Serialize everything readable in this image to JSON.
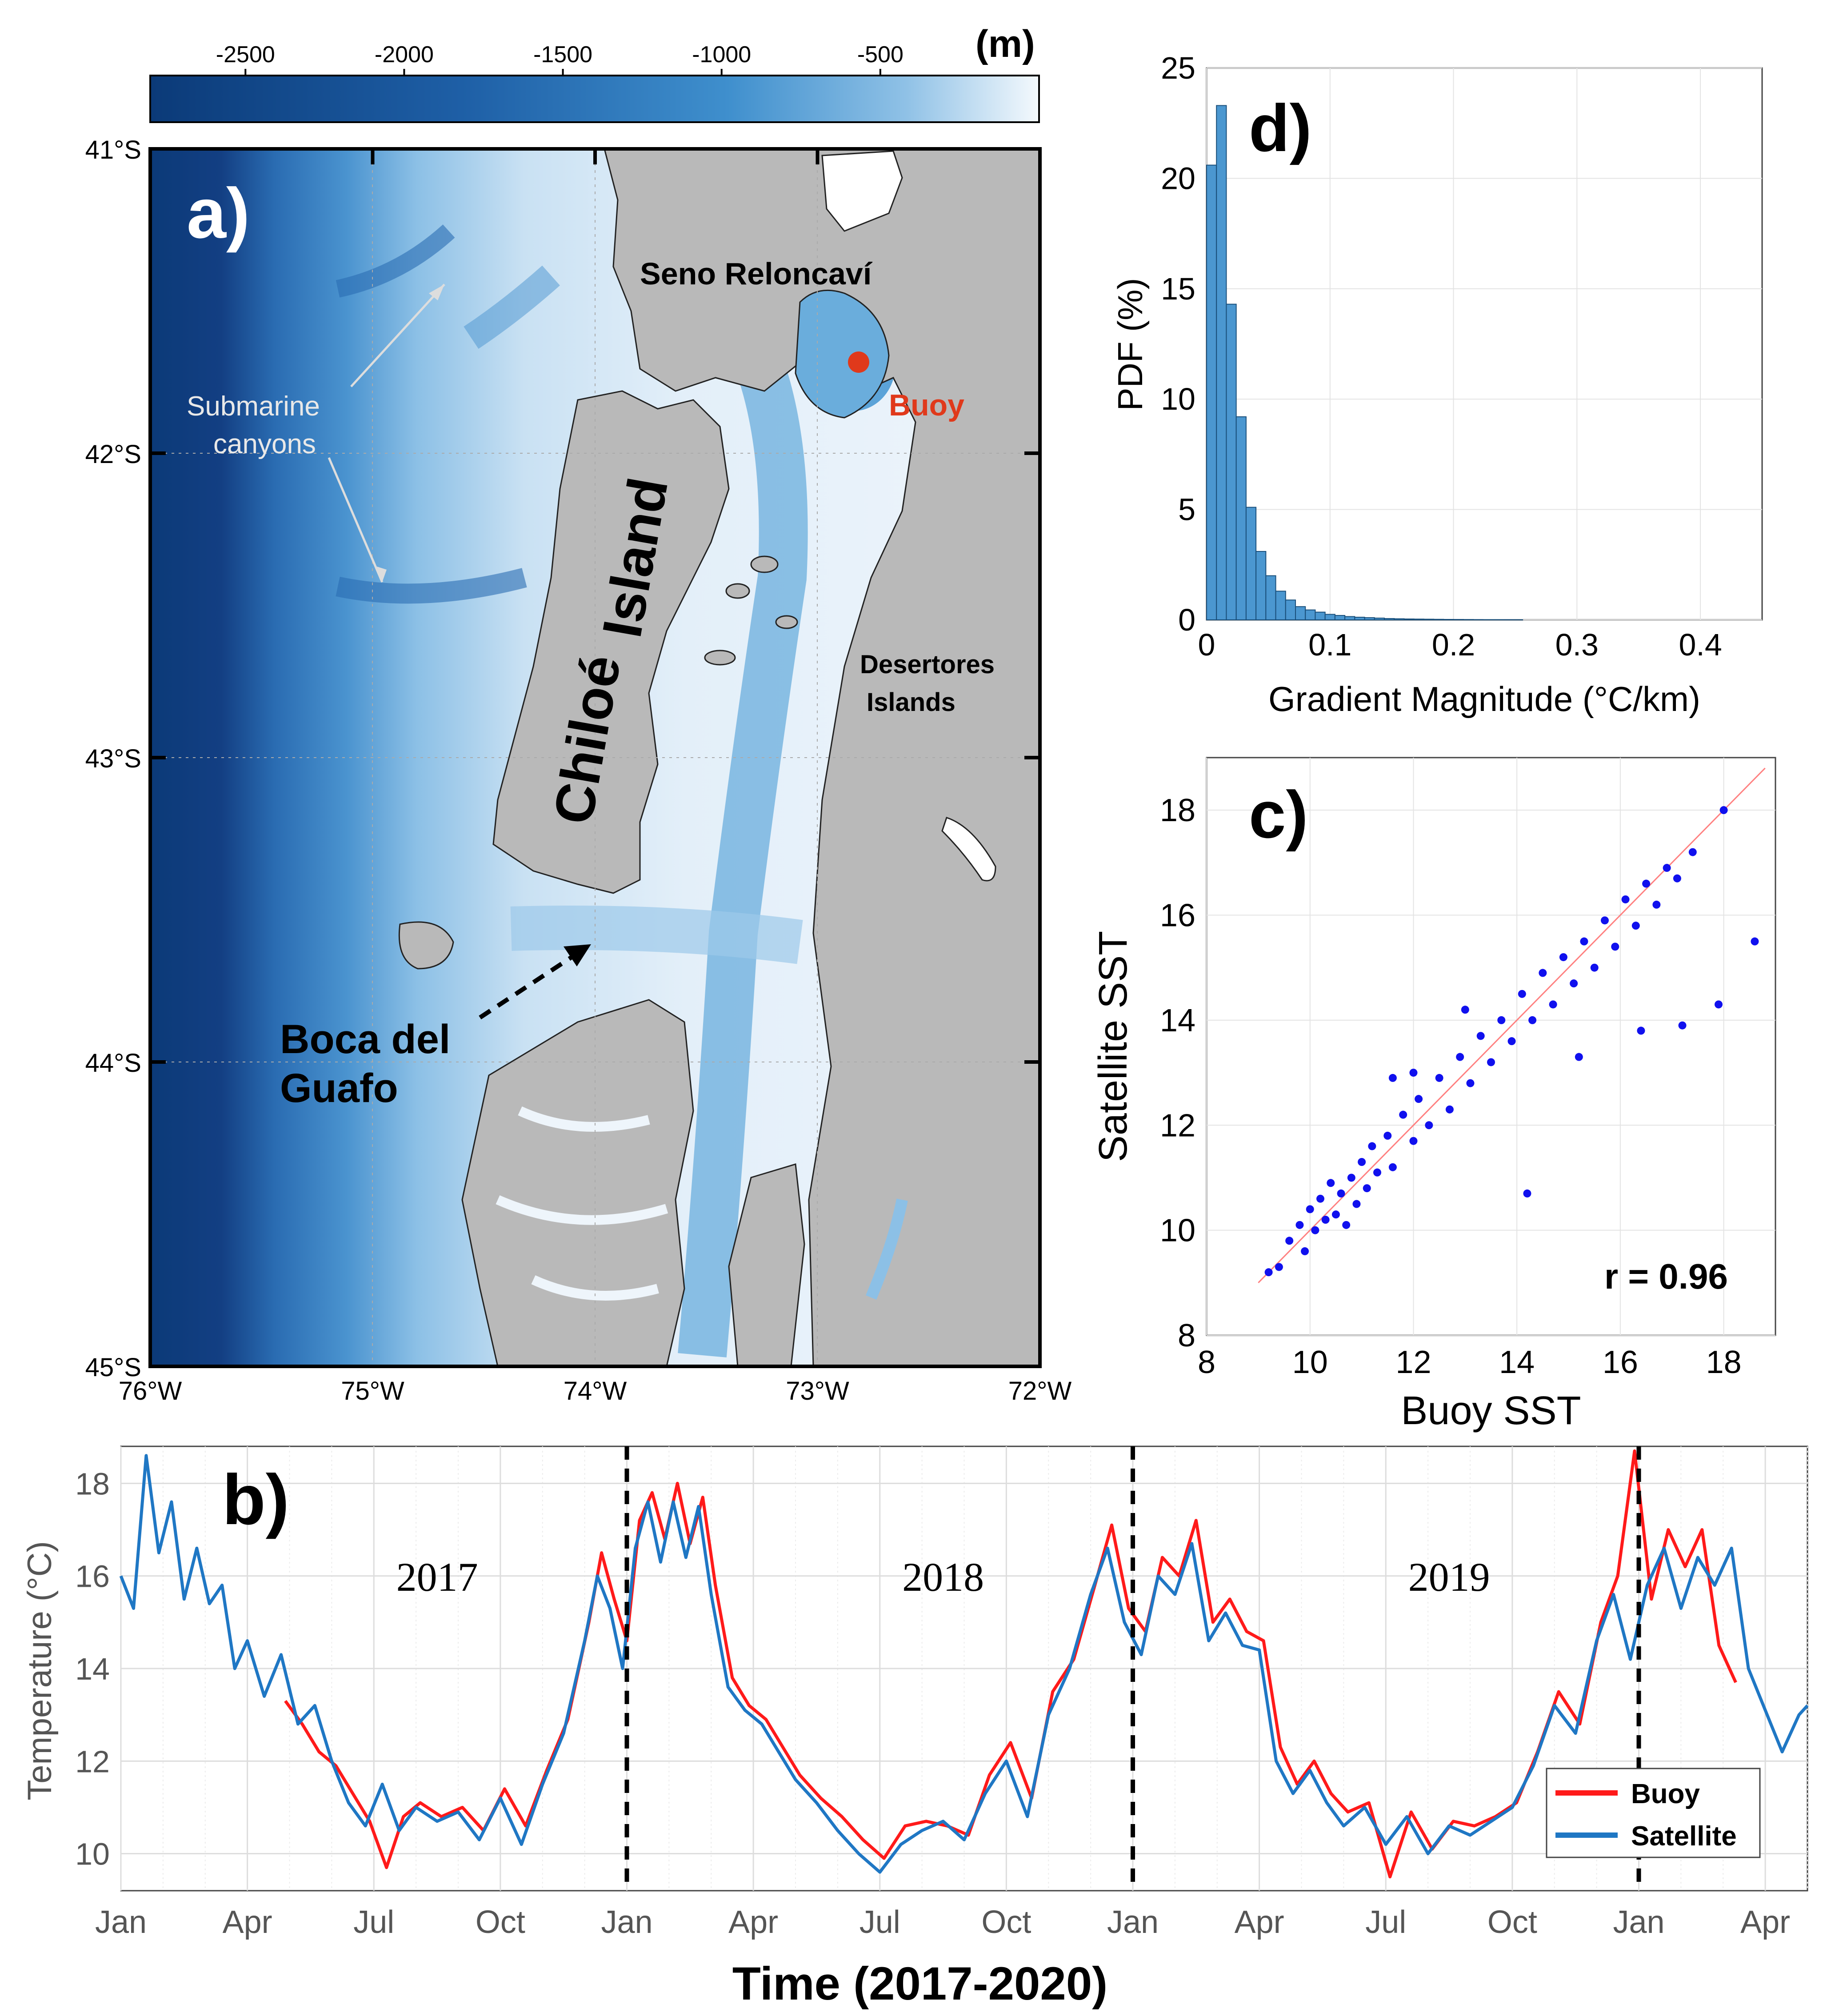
{
  "colors": {
    "deep": "#0b3a78",
    "mid": "#3f8fcd",
    "shallow": "#eaf3fb",
    "land": "#b9b9b9",
    "buoy_marker": "#e0391b",
    "buoy_line": "#ff1a1a",
    "satellite_line": "#1f77c4",
    "hist_bar": "#4b97d0",
    "scatter": "#1010ee",
    "fit_line": "#ff8080"
  },
  "panel_a": {
    "label": "a)",
    "colorbar": {
      "unit": "(m)",
      "ticks": [
        "-2500",
        "-2000",
        "-1500",
        "-1000",
        "-500"
      ],
      "tick_values": [
        -2500,
        -2000,
        -1500,
        -1000,
        -500
      ],
      "range": [
        -2800,
        0
      ]
    },
    "lat_labels": [
      "41°S",
      "42°S",
      "43°S",
      "44°S",
      "45°S"
    ],
    "lon_labels": [
      "76°W",
      "75°W",
      "74°W",
      "73°W",
      "72°W"
    ],
    "annotations": {
      "seno": "Seno Reloncaví",
      "buoy": "Buoy",
      "submarine_1": "Submarine",
      "submarine_2": "canyons",
      "desertores_1": "Desertores",
      "desertores_2": "Islands",
      "chiloe_1": "Chiloé",
      "chiloe_2": "Island",
      "boca_1": "Boca del",
      "boca_2": "Guafo"
    }
  },
  "chart_data": [
    {
      "type": "bar",
      "panel": "d)",
      "xlabel": "Gradient Magnitude (°C/km)",
      "ylabel": "PDF (%)",
      "xlim": [
        0,
        0.45
      ],
      "ylim": [
        0,
        25
      ],
      "xticks": [
        "0",
        "0.1",
        "0.2",
        "0.3",
        "0.4"
      ],
      "yticks": [
        "0",
        "5",
        "10",
        "15",
        "20",
        "25"
      ],
      "bin_width": 0.008,
      "values": [
        20.6,
        23.3,
        14.3,
        9.2,
        5.1,
        3.1,
        2.0,
        1.3,
        0.9,
        0.6,
        0.45,
        0.35,
        0.25,
        0.2,
        0.15,
        0.12,
        0.1,
        0.08,
        0.06,
        0.05,
        0.04,
        0.035,
        0.03,
        0.025,
        0.02,
        0.018,
        0.015,
        0.012,
        0.01,
        0.01,
        0.008,
        0.006
      ]
    },
    {
      "type": "scatter",
      "panel": "c)",
      "xlabel": "Buoy SST",
      "ylabel": "Satellite SST",
      "xlim": [
        8,
        19
      ],
      "ylim": [
        8,
        19
      ],
      "xticks": [
        "8",
        "10",
        "12",
        "14",
        "16",
        "18"
      ],
      "yticks": [
        "8",
        "10",
        "12",
        "14",
        "16",
        "18"
      ],
      "annotation": "r = 0.96",
      "fit_line": [
        [
          9,
          9
        ],
        [
          18.8,
          18.8
        ]
      ],
      "points": [
        [
          9.2,
          9.2
        ],
        [
          9.4,
          9.3
        ],
        [
          9.6,
          9.8
        ],
        [
          9.8,
          10.1
        ],
        [
          9.9,
          9.6
        ],
        [
          10.0,
          10.4
        ],
        [
          10.1,
          10.0
        ],
        [
          10.2,
          10.6
        ],
        [
          10.3,
          10.2
        ],
        [
          10.4,
          10.9
        ],
        [
          10.5,
          10.3
        ],
        [
          10.6,
          10.7
        ],
        [
          10.7,
          10.1
        ],
        [
          10.8,
          11.0
        ],
        [
          10.9,
          10.5
        ],
        [
          11.0,
          11.3
        ],
        [
          11.1,
          10.8
        ],
        [
          11.2,
          11.6
        ],
        [
          11.3,
          11.1
        ],
        [
          11.5,
          11.8
        ],
        [
          11.6,
          11.2
        ],
        [
          11.8,
          12.2
        ],
        [
          12.0,
          11.7
        ],
        [
          12.1,
          12.5
        ],
        [
          12.3,
          12.0
        ],
        [
          12.5,
          12.9
        ],
        [
          12.7,
          12.3
        ],
        [
          12.9,
          13.3
        ],
        [
          13.1,
          12.8
        ],
        [
          13.3,
          13.7
        ],
        [
          13.5,
          13.2
        ],
        [
          13.7,
          14.0
        ],
        [
          13.9,
          13.6
        ],
        [
          14.1,
          14.5
        ],
        [
          14.3,
          14.0
        ],
        [
          14.5,
          14.9
        ],
        [
          14.7,
          14.3
        ],
        [
          14.9,
          15.2
        ],
        [
          15.1,
          14.7
        ],
        [
          15.3,
          15.5
        ],
        [
          15.5,
          15.0
        ],
        [
          15.7,
          15.9
        ],
        [
          15.9,
          15.4
        ],
        [
          16.1,
          16.3
        ],
        [
          16.3,
          15.8
        ],
        [
          16.5,
          16.6
        ],
        [
          16.7,
          16.2
        ],
        [
          16.9,
          16.9
        ],
        [
          17.1,
          16.7
        ],
        [
          17.4,
          17.2
        ],
        [
          18.0,
          18.0
        ],
        [
          18.6,
          15.5
        ],
        [
          17.2,
          13.9
        ],
        [
          16.4,
          13.8
        ],
        [
          15.2,
          13.3
        ],
        [
          14.2,
          10.7
        ],
        [
          12.0,
          13.0
        ],
        [
          11.6,
          12.9
        ],
        [
          17.9,
          14.3
        ],
        [
          13.0,
          14.2
        ]
      ]
    },
    {
      "type": "line",
      "panel": "b)",
      "xlabel": "Time (2017-2020)",
      "ylabel": "Temperature (°C)",
      "x_unit": "months since Jan 2017",
      "xlim": [
        0,
        40
      ],
      "ylim": [
        9.2,
        18.8
      ],
      "xticks": [
        "Jan",
        "Apr",
        "Jul",
        "Oct",
        "Jan",
        "Apr",
        "Jul",
        "Oct",
        "Jan",
        "Apr",
        "Jul",
        "Oct",
        "Jan",
        "Apr"
      ],
      "xtick_values": [
        0,
        3,
        6,
        9,
        12,
        15,
        18,
        21,
        24,
        27,
        30,
        33,
        36,
        39
      ],
      "yticks": [
        "10",
        "12",
        "14",
        "16",
        "18"
      ],
      "year_labels": [
        "2017",
        "2018",
        "2019"
      ],
      "year_label_positions": [
        7.5,
        19.5,
        31.5
      ],
      "dashed_year_lines": [
        12,
        24,
        36
      ],
      "legend": [
        "Buoy",
        "Satellite"
      ],
      "series": [
        {
          "name": "Satellite",
          "x": [
            0,
            0.3,
            0.6,
            0.9,
            1.2,
            1.5,
            1.8,
            2.1,
            2.4,
            2.7,
            3.0,
            3.4,
            3.8,
            4.2,
            4.6,
            5.0,
            5.4,
            5.8,
            6.2,
            6.6,
            7.0,
            7.5,
            8.0,
            8.5,
            9.0,
            9.5,
            10.0,
            10.5,
            11.0,
            11.3,
            11.6,
            11.9,
            12.2,
            12.5,
            12.8,
            13.1,
            13.4,
            13.7,
            14.0,
            14.4,
            14.8,
            15.2,
            15.6,
            16.0,
            16.5,
            17.0,
            17.5,
            18.0,
            18.5,
            19.0,
            19.5,
            20.0,
            20.5,
            21.0,
            21.5,
            22.0,
            22.5,
            23.0,
            23.4,
            23.8,
            24.2,
            24.6,
            25.0,
            25.4,
            25.8,
            26.2,
            26.6,
            27.0,
            27.4,
            27.8,
            28.2,
            28.6,
            29.0,
            29.5,
            30.0,
            30.5,
            31.0,
            31.5,
            32.0,
            32.5,
            33.0,
            33.5,
            34.0,
            34.5,
            35.0,
            35.4,
            35.8,
            36.2,
            36.6,
            37.0,
            37.4,
            37.8,
            38.2,
            38.6,
            39.0,
            39.4,
            39.8,
            40.0
          ],
          "values": [
            16.0,
            15.3,
            18.6,
            16.5,
            17.6,
            15.5,
            16.6,
            15.4,
            15.8,
            14.0,
            14.6,
            13.4,
            14.3,
            12.8,
            13.2,
            12.0,
            11.1,
            10.6,
            11.5,
            10.5,
            11.0,
            10.7,
            10.9,
            10.3,
            11.2,
            10.2,
            11.5,
            12.6,
            14.6,
            16.0,
            15.3,
            14.0,
            16.6,
            17.6,
            16.3,
            17.6,
            16.4,
            17.5,
            15.6,
            13.6,
            13.1,
            12.8,
            12.2,
            11.6,
            11.1,
            10.5,
            10.0,
            9.6,
            10.2,
            10.5,
            10.7,
            10.3,
            11.3,
            12.0,
            10.8,
            13.0,
            14.0,
            15.6,
            16.6,
            15.0,
            14.3,
            16.0,
            15.6,
            16.7,
            14.6,
            15.2,
            14.5,
            14.4,
            12.0,
            11.3,
            11.8,
            11.1,
            10.6,
            11.0,
            10.2,
            10.8,
            10.0,
            10.6,
            10.4,
            10.7,
            11.0,
            11.9,
            13.2,
            12.6,
            14.6,
            15.6,
            14.2,
            15.8,
            16.6,
            15.3,
            16.4,
            15.8,
            16.6,
            14.0,
            13.1,
            12.2,
            13.0,
            13.2
          ]
        },
        {
          "name": "Buoy",
          "x": [
            3.9,
            4.3,
            4.7,
            5.1,
            5.5,
            5.9,
            6.3,
            6.7,
            7.1,
            7.6,
            8.1,
            8.6,
            9.1,
            9.6,
            10.1,
            10.6,
            11.1,
            11.4,
            11.7,
            12.0,
            12.3,
            12.6,
            12.9,
            13.2,
            13.5,
            13.8,
            14.1,
            14.5,
            14.9,
            15.3,
            15.7,
            16.1,
            16.6,
            17.1,
            17.6,
            18.1,
            18.6,
            19.1,
            19.6,
            20.1,
            20.6,
            21.1,
            21.6,
            22.1,
            22.6,
            23.1,
            23.5,
            23.9,
            24.3,
            24.7,
            25.1,
            25.5,
            25.9,
            26.3,
            26.7,
            27.1,
            27.5,
            27.9,
            28.3,
            28.7,
            29.1,
            29.6,
            30.1,
            30.6,
            31.1,
            31.6,
            32.1,
            32.6,
            33.1,
            33.6,
            34.1,
            34.6,
            35.1,
            35.5,
            35.9,
            36.3,
            36.7,
            37.1,
            37.5,
            37.9,
            38.3
          ],
          "values": [
            13.3,
            12.8,
            12.2,
            11.9,
            11.3,
            10.7,
            9.7,
            10.8,
            11.1,
            10.8,
            11.0,
            10.5,
            11.4,
            10.6,
            11.8,
            12.9,
            15.0,
            16.5,
            15.5,
            14.6,
            17.2,
            17.8,
            16.8,
            18.0,
            16.7,
            17.7,
            15.8,
            13.8,
            13.2,
            12.9,
            12.3,
            11.7,
            11.2,
            10.8,
            10.3,
            9.9,
            10.6,
            10.7,
            10.6,
            10.4,
            11.7,
            12.4,
            11.2,
            13.5,
            14.2,
            15.8,
            17.1,
            15.3,
            14.8,
            16.4,
            16.0,
            17.2,
            15.0,
            15.5,
            14.8,
            14.6,
            12.3,
            11.5,
            12.0,
            11.3,
            10.9,
            11.1,
            9.5,
            10.9,
            10.1,
            10.7,
            10.6,
            10.8,
            11.1,
            12.2,
            13.5,
            12.8,
            15.0,
            16.0,
            18.7,
            15.5,
            17.0,
            16.2,
            17.0,
            14.5,
            13.7
          ]
        }
      ]
    }
  ]
}
